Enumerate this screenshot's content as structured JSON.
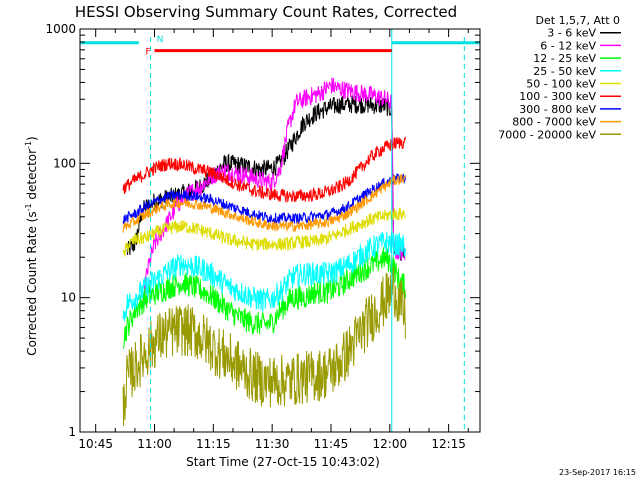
{
  "chart_data": {
    "type": "line",
    "title": "HESSI Observing Summary Count Rates, Corrected",
    "xlabel": "Start Time (27-Oct-15 10:43:02)",
    "ylabel_main": "Corrected Count Rate (s",
    "ylabel_sup1": "-1",
    "ylabel_mid": " detector",
    "ylabel_sup2": "-1",
    "ylabel_end": ")",
    "x_ticks": [
      {
        "value": 45,
        "label": "10:45"
      },
      {
        "value": 60,
        "label": "11:00"
      },
      {
        "value": 75,
        "label": "11:15"
      },
      {
        "value": 90,
        "label": "11:30"
      },
      {
        "value": 105,
        "label": "11:45"
      },
      {
        "value": 120,
        "label": "12:00"
      },
      {
        "value": 135,
        "label": "12:15"
      }
    ],
    "xlim": [
      41,
      143
    ],
    "y_scale": "log",
    "ylim": [
      1,
      1000
    ],
    "y_ticks": [
      {
        "value": 1,
        "label": "1"
      },
      {
        "value": 10,
        "label": "10"
      },
      {
        "value": 100,
        "label": "100"
      },
      {
        "value": 1000,
        "label": "1000"
      }
    ],
    "legend_title": "Det 1,5,7, Att 0",
    "legend_placement": "top-right outside",
    "timestamp": "23-Sep-2017 16:15",
    "series": [
      {
        "name": "3 - 6 keV",
        "color": "#000000",
        "noise": 0.07,
        "points": [
          [
            53,
            22
          ],
          [
            55,
            25
          ],
          [
            57,
            45
          ],
          [
            60,
            52
          ],
          [
            63,
            55
          ],
          [
            66,
            58
          ],
          [
            69,
            62
          ],
          [
            72,
            68
          ],
          [
            75,
            82
          ],
          [
            78,
            100
          ],
          [
            81,
            98
          ],
          [
            84,
            94
          ],
          [
            87,
            90
          ],
          [
            90,
            92
          ],
          [
            92,
            100
          ],
          [
            95,
            140
          ],
          [
            98,
            200
          ],
          [
            101,
            235
          ],
          [
            104,
            258
          ],
          [
            107,
            272
          ],
          [
            110,
            275
          ],
          [
            113,
            275
          ],
          [
            116,
            272
          ],
          [
            119,
            268
          ],
          [
            120.5,
            250
          ],
          [
            121,
            22
          ],
          [
            124,
            22
          ]
        ]
      },
      {
        "name": "6 - 12 keV",
        "color": "#ff00ff",
        "noise": 0.07,
        "points": [
          [
            57,
            8
          ],
          [
            58,
            15
          ],
          [
            60,
            25
          ],
          [
            63,
            35
          ],
          [
            66,
            50
          ],
          [
            69,
            60
          ],
          [
            72,
            68
          ],
          [
            75,
            82
          ],
          [
            78,
            88
          ],
          [
            81,
            84
          ],
          [
            84,
            80
          ],
          [
            87,
            75
          ],
          [
            90,
            72
          ],
          [
            92,
            90
          ],
          [
            94,
            180
          ],
          [
            96,
            280
          ],
          [
            99,
            310
          ],
          [
            102,
            330
          ],
          [
            105,
            380
          ],
          [
            107,
            360
          ],
          [
            110,
            345
          ],
          [
            113,
            330
          ],
          [
            116,
            318
          ],
          [
            119,
            300
          ],
          [
            120.5,
            280
          ],
          [
            121,
            22
          ],
          [
            124,
            22
          ]
        ]
      },
      {
        "name": "12 - 25 keV",
        "color": "#00ff00",
        "noise": 0.09,
        "points": [
          [
            52,
            5
          ],
          [
            53,
            6
          ],
          [
            55,
            8
          ],
          [
            58,
            10
          ],
          [
            61,
            11
          ],
          [
            64,
            12
          ],
          [
            67,
            13
          ],
          [
            70,
            12
          ],
          [
            73,
            11
          ],
          [
            76,
            9.5
          ],
          [
            79,
            8
          ],
          [
            82,
            7
          ],
          [
            85,
            6.5
          ],
          [
            88,
            6.3
          ],
          [
            90,
            6.5
          ],
          [
            92,
            8
          ],
          [
            95,
            10
          ],
          [
            98,
            10
          ],
          [
            101,
            11
          ],
          [
            104,
            11
          ],
          [
            107,
            12
          ],
          [
            110,
            14
          ],
          [
            113,
            16
          ],
          [
            116,
            18
          ],
          [
            119,
            20
          ],
          [
            121,
            17
          ],
          [
            122,
            14
          ],
          [
            124,
            12
          ]
        ]
      },
      {
        "name": "25 - 50 keV",
        "color": "#00ffff",
        "noise": 0.09,
        "points": [
          [
            52,
            7
          ],
          [
            53,
            9
          ],
          [
            55,
            10
          ],
          [
            58,
            12
          ],
          [
            61,
            14
          ],
          [
            64,
            16
          ],
          [
            67,
            18
          ],
          [
            70,
            17
          ],
          [
            73,
            16
          ],
          [
            76,
            14
          ],
          [
            79,
            12
          ],
          [
            82,
            11
          ],
          [
            85,
            10
          ],
          [
            88,
            9.5
          ],
          [
            90,
            9.8
          ],
          [
            92,
            11
          ],
          [
            95,
            14
          ],
          [
            98,
            15
          ],
          [
            101,
            15
          ],
          [
            104,
            15
          ],
          [
            107,
            16
          ],
          [
            110,
            18
          ],
          [
            113,
            21
          ],
          [
            116,
            24
          ],
          [
            119,
            26
          ],
          [
            121,
            25
          ],
          [
            124,
            24
          ]
        ]
      },
      {
        "name": "50 - 100 keV",
        "color": "#dddd00",
        "noise": 0.05,
        "points": [
          [
            52,
            20
          ],
          [
            53,
            24
          ],
          [
            55,
            27
          ],
          [
            58,
            28
          ],
          [
            61,
            31
          ],
          [
            64,
            33
          ],
          [
            67,
            34
          ],
          [
            70,
            33
          ],
          [
            73,
            31
          ],
          [
            76,
            29
          ],
          [
            79,
            27
          ],
          [
            82,
            26
          ],
          [
            85,
            25
          ],
          [
            88,
            25
          ],
          [
            91,
            25
          ],
          [
            94,
            25
          ],
          [
            97,
            26
          ],
          [
            100,
            26
          ],
          [
            103,
            27
          ],
          [
            106,
            29
          ],
          [
            109,
            32
          ],
          [
            112,
            35
          ],
          [
            115,
            38
          ],
          [
            118,
            40
          ],
          [
            121,
            42
          ],
          [
            124,
            42
          ]
        ]
      },
      {
        "name": "100 - 300 keV",
        "color": "#ff0000",
        "noise": 0.05,
        "points": [
          [
            52,
            65
          ],
          [
            55,
            75
          ],
          [
            58,
            85
          ],
          [
            61,
            95
          ],
          [
            64,
            100
          ],
          [
            67,
            98
          ],
          [
            70,
            92
          ],
          [
            73,
            88
          ],
          [
            76,
            82
          ],
          [
            79,
            74
          ],
          [
            82,
            68
          ],
          [
            85,
            63
          ],
          [
            88,
            60
          ],
          [
            91,
            58
          ],
          [
            94,
            57
          ],
          [
            97,
            57
          ],
          [
            100,
            58
          ],
          [
            103,
            60
          ],
          [
            106,
            64
          ],
          [
            109,
            72
          ],
          [
            112,
            88
          ],
          [
            115,
            110
          ],
          [
            118,
            128
          ],
          [
            121,
            140
          ],
          [
            124,
            145
          ]
        ]
      },
      {
        "name": "300 - 800 keV",
        "color": "#0000ff",
        "noise": 0.04,
        "points": [
          [
            52,
            38
          ],
          [
            55,
            42
          ],
          [
            58,
            48
          ],
          [
            61,
            53
          ],
          [
            64,
            57
          ],
          [
            67,
            58
          ],
          [
            70,
            57
          ],
          [
            73,
            55
          ],
          [
            76,
            52
          ],
          [
            79,
            48
          ],
          [
            82,
            45
          ],
          [
            85,
            42
          ],
          [
            88,
            40
          ],
          [
            91,
            39
          ],
          [
            94,
            39
          ],
          [
            97,
            39
          ],
          [
            100,
            40
          ],
          [
            103,
            41
          ],
          [
            106,
            43
          ],
          [
            109,
            47
          ],
          [
            112,
            54
          ],
          [
            115,
            62
          ],
          [
            118,
            70
          ],
          [
            121,
            76
          ],
          [
            124,
            78
          ]
        ]
      },
      {
        "name": "800 - 7000 keV",
        "color": "#ff9900",
        "noise": 0.04,
        "points": [
          [
            52,
            33
          ],
          [
            55,
            37
          ],
          [
            58,
            42
          ],
          [
            61,
            47
          ],
          [
            64,
            50
          ],
          [
            67,
            51
          ],
          [
            70,
            50
          ],
          [
            73,
            48
          ],
          [
            76,
            45
          ],
          [
            79,
            42
          ],
          [
            82,
            39
          ],
          [
            85,
            37
          ],
          [
            88,
            35
          ],
          [
            91,
            34
          ],
          [
            94,
            34
          ],
          [
            97,
            34
          ],
          [
            100,
            35
          ],
          [
            103,
            36
          ],
          [
            106,
            38
          ],
          [
            109,
            42
          ],
          [
            112,
            48
          ],
          [
            115,
            56
          ],
          [
            118,
            65
          ],
          [
            121,
            74
          ],
          [
            124,
            78
          ]
        ]
      },
      {
        "name": "7000 - 20000 keV",
        "color": "#999900",
        "noise": 0.2,
        "points": [
          [
            52,
            1.5
          ],
          [
            53,
            2.5
          ],
          [
            55,
            3
          ],
          [
            58,
            4
          ],
          [
            61,
            5
          ],
          [
            64,
            5.5
          ],
          [
            67,
            5.8
          ],
          [
            70,
            5.5
          ],
          [
            73,
            4.8
          ],
          [
            76,
            4
          ],
          [
            79,
            3.5
          ],
          [
            82,
            3
          ],
          [
            85,
            2.6
          ],
          [
            88,
            2.4
          ],
          [
            91,
            2.4
          ],
          [
            94,
            2.4
          ],
          [
            97,
            2.5
          ],
          [
            100,
            2.6
          ],
          [
            103,
            2.7
          ],
          [
            106,
            3
          ],
          [
            109,
            3.8
          ],
          [
            112,
            5.2
          ],
          [
            115,
            7
          ],
          [
            118,
            9
          ],
          [
            120.5,
            11
          ],
          [
            121,
            12
          ],
          [
            124,
            7
          ]
        ]
      }
    ],
    "markers": [
      {
        "type": "night",
        "label": "N"
      },
      {
        "type": "flare",
        "label": "F"
      }
    ],
    "night_bands": [
      [
        41,
        56
      ],
      [
        120.5,
        143
      ]
    ],
    "saa_lines": [
      59,
      139
    ],
    "flare_range": [
      60,
      120.5
    ],
    "flare_level": 690,
    "night_level": 790,
    "colors": {
      "axes": "#000000",
      "night": "#00e0e0",
      "flare": "#ff0000"
    }
  }
}
